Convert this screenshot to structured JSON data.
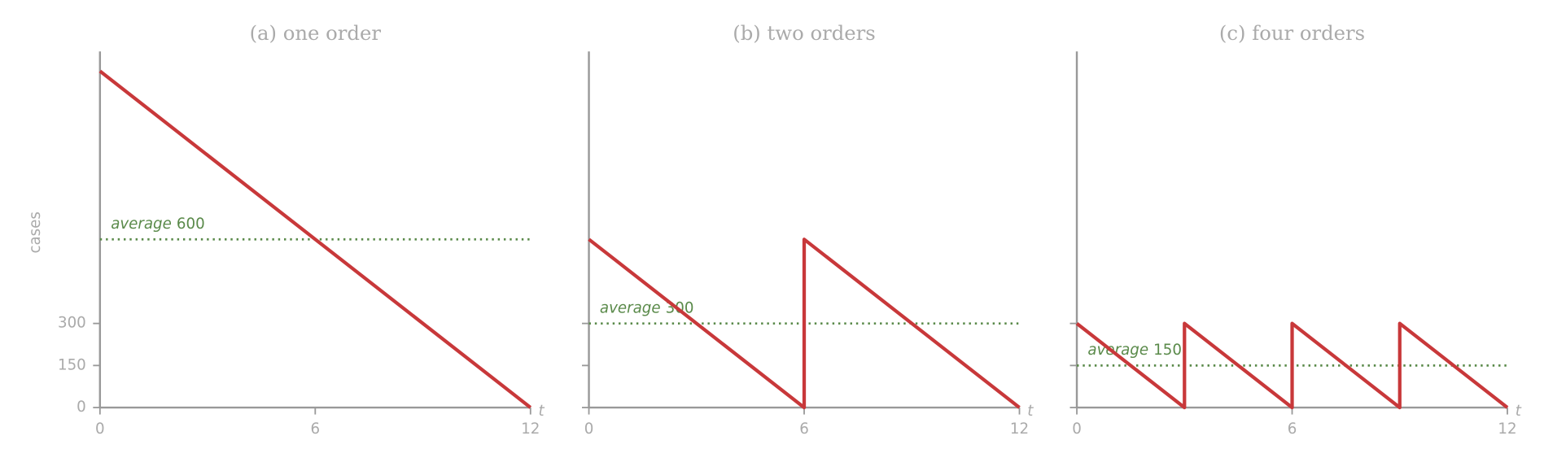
{
  "chart_data": [
    {
      "type": "line",
      "title": "(a) one order",
      "ylabel": "cases",
      "xlabel": "t",
      "x": [
        0,
        12
      ],
      "series": [
        {
          "color": "#c8383a",
          "values": [
            1200,
            0
          ]
        }
      ],
      "average_label": "average",
      "average": 600,
      "average_color": "#5a8a4a",
      "xlim": [
        0,
        12
      ],
      "xticks": [
        0,
        6,
        12
      ],
      "ylim": [
        0,
        1270
      ],
      "yticks": [
        0,
        150,
        300
      ]
    },
    {
      "type": "line",
      "title": "(b) two orders",
      "xlabel": "t",
      "x": [
        0,
        6,
        6,
        12
      ],
      "series": [
        {
          "color": "#c8383a",
          "values": [
            600,
            0,
            600,
            0
          ]
        }
      ],
      "average_label": "average",
      "average": 300,
      "average_color": "#5a8a4a",
      "xlim": [
        0,
        12
      ],
      "xticks": [
        0,
        6,
        12
      ],
      "ylim": [
        0,
        1270
      ],
      "yticks": [
        0,
        150,
        300
      ]
    },
    {
      "type": "line",
      "title": "(c) four orders",
      "xlabel": "t",
      "x": [
        0,
        3,
        3,
        6,
        6,
        9,
        9,
        12
      ],
      "series": [
        {
          "color": "#c8383a",
          "values": [
            300,
            0,
            300,
            0,
            300,
            0,
            300,
            0
          ]
        }
      ],
      "average_label": "average",
      "average": 150,
      "average_color": "#5a8a4a",
      "xlim": [
        0,
        12
      ],
      "xticks": [
        0,
        6,
        12
      ],
      "ylim": [
        0,
        1270
      ],
      "yticks": [
        0,
        150,
        300
      ]
    }
  ]
}
